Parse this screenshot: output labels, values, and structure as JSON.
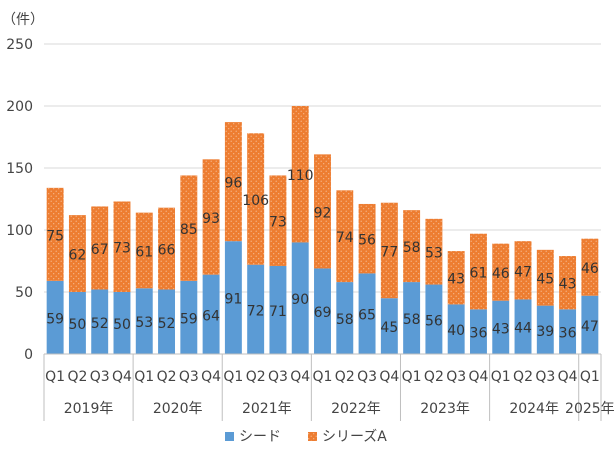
{
  "chart_data": {
    "type": "bar",
    "stacked": true,
    "unit_label": "（件）",
    "ylim": [
      0,
      250
    ],
    "yticks": [
      0,
      50,
      100,
      150,
      200,
      250
    ],
    "grid": true,
    "legend_position": "bottom",
    "categories": [
      "Q1",
      "Q2",
      "Q3",
      "Q4",
      "Q1",
      "Q2",
      "Q3",
      "Q4",
      "Q1",
      "Q2",
      "Q3",
      "Q4",
      "Q1",
      "Q2",
      "Q3",
      "Q4",
      "Q1",
      "Q2",
      "Q3",
      "Q4",
      "Q1",
      "Q2",
      "Q3",
      "Q4",
      "Q1"
    ],
    "year_groups": [
      {
        "label": "2019年",
        "count": 4
      },
      {
        "label": "2020年",
        "count": 4
      },
      {
        "label": "2021年",
        "count": 4
      },
      {
        "label": "2022年",
        "count": 4
      },
      {
        "label": "2023年",
        "count": 4
      },
      {
        "label": "2024年",
        "count": 4
      },
      {
        "label": "2025年",
        "count": 1
      }
    ],
    "series": [
      {
        "name": "シード",
        "color": "#5b9bd5",
        "values": [
          59,
          50,
          52,
          50,
          53,
          52,
          59,
          64,
          91,
          72,
          71,
          90,
          69,
          58,
          65,
          45,
          58,
          56,
          40,
          36,
          43,
          44,
          39,
          36,
          47
        ]
      },
      {
        "name": "シリーズA",
        "color": "#ed7d31",
        "values": [
          75,
          62,
          67,
          73,
          61,
          66,
          85,
          93,
          96,
          106,
          73,
          110,
          92,
          74,
          56,
          77,
          58,
          53,
          43,
          61,
          46,
          47,
          45,
          43,
          46
        ]
      }
    ]
  }
}
